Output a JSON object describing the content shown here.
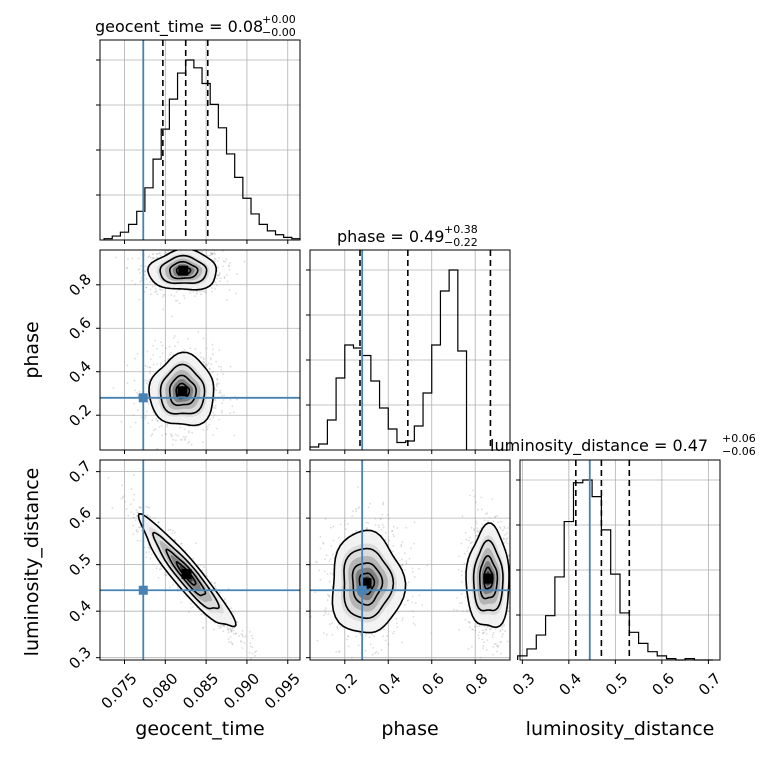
{
  "chart_data": {
    "type": "corner",
    "parameters": [
      "geocent_time",
      "phase",
      "luminosity_distance"
    ],
    "titles": [
      {
        "param": "geocent_time",
        "main": "geocent_time = 0.08",
        "sup": "+0.00",
        "sub": "−0.00"
      },
      {
        "param": "phase",
        "main": "phase = 0.49",
        "sup": "+0.38",
        "sub": "−0.22"
      },
      {
        "param": "luminosity_distance",
        "main": "luminosity_distance = 0.47",
        "sup": "+0.06",
        "sub": "−0.06"
      }
    ],
    "ranges": {
      "geocent_time": [
        0.072,
        0.0965
      ],
      "phase": [
        0.04,
        0.96
      ],
      "luminosity_distance": [
        0.295,
        0.725
      ]
    },
    "ticks": {
      "geocent_time": [
        "0.075",
        "0.080",
        "0.085",
        "0.090",
        "0.095"
      ],
      "phase": [
        "0.2",
        "0.4",
        "0.6",
        "0.8"
      ],
      "luminosity_distance": [
        "0.3",
        "0.4",
        "0.5",
        "0.6",
        "0.7"
      ]
    },
    "truths": {
      "geocent_time": 0.0773,
      "phase": 0.28,
      "luminosity_distance": 0.445
    },
    "quantiles": {
      "geocent_time": [
        0.0797,
        0.0825,
        0.0852
      ],
      "phase": [
        0.27,
        0.49,
        0.87
      ],
      "luminosity_distance": [
        0.415,
        0.47,
        0.53
      ]
    },
    "histograms": {
      "geocent_time": {
        "edges_start": 0.0725,
        "bin_width": 0.001,
        "counts": [
          1,
          3,
          6,
          12,
          22,
          40,
          62,
          85,
          108,
          128,
          138,
          132,
          120,
          104,
          86,
          66,
          48,
          32,
          20,
          12,
          7,
          4,
          2,
          1
        ]
      },
      "phase": {
        "edges_start": 0.04,
        "bin_width": 0.04,
        "counts": [
          2,
          4,
          20,
          48,
          70,
          68,
          63,
          46,
          28,
          14,
          5,
          6,
          16,
          38,
          70,
          106,
          120,
          66
        ]
      },
      "luminosity_distance": {
        "edges_start": 0.29,
        "bin_width": 0.02,
        "counts": [
          3,
          8,
          18,
          32,
          60,
          100,
          128,
          130,
          118,
          94,
          62,
          34,
          20,
          12,
          6,
          3,
          1,
          0,
          1,
          0,
          0
        ]
      }
    },
    "blobs": {
      "geocent_time_phase": [
        {
          "cx": 0.0822,
          "cy": 0.865,
          "sx": 0.0019,
          "sy": 0.042,
          "rho": 0.0
        },
        {
          "cx": 0.0821,
          "cy": 0.31,
          "sx": 0.0018,
          "sy": 0.075,
          "rho": 0.0
        }
      ],
      "geocent_time_luminosity_distance": [
        {
          "cx": 0.0826,
          "cy": 0.48,
          "sx": 0.0026,
          "sy": 0.054,
          "rho": -0.93
        }
      ],
      "phase_luminosity_distance": [
        {
          "cx": 0.3,
          "cy": 0.46,
          "sx": 0.075,
          "sy": 0.05,
          "rho": 0.0
        },
        {
          "cx": 0.86,
          "cy": 0.47,
          "sx": 0.045,
          "sy": 0.05,
          "rho": 0.0
        }
      ]
    },
    "xlabel_geocent_time": "geocent_time",
    "xlabel_phase": "phase",
    "xlabel_luminosity_distance": "luminosity_distance",
    "ylabel_phase": "phase",
    "ylabel_luminosity_distance": "luminosity_distance",
    "grid": true,
    "colors": {
      "truth": "#4682b4",
      "line": "#000000",
      "scatter": "#9a9a9a",
      "grid": "#b0b0b0"
    }
  }
}
